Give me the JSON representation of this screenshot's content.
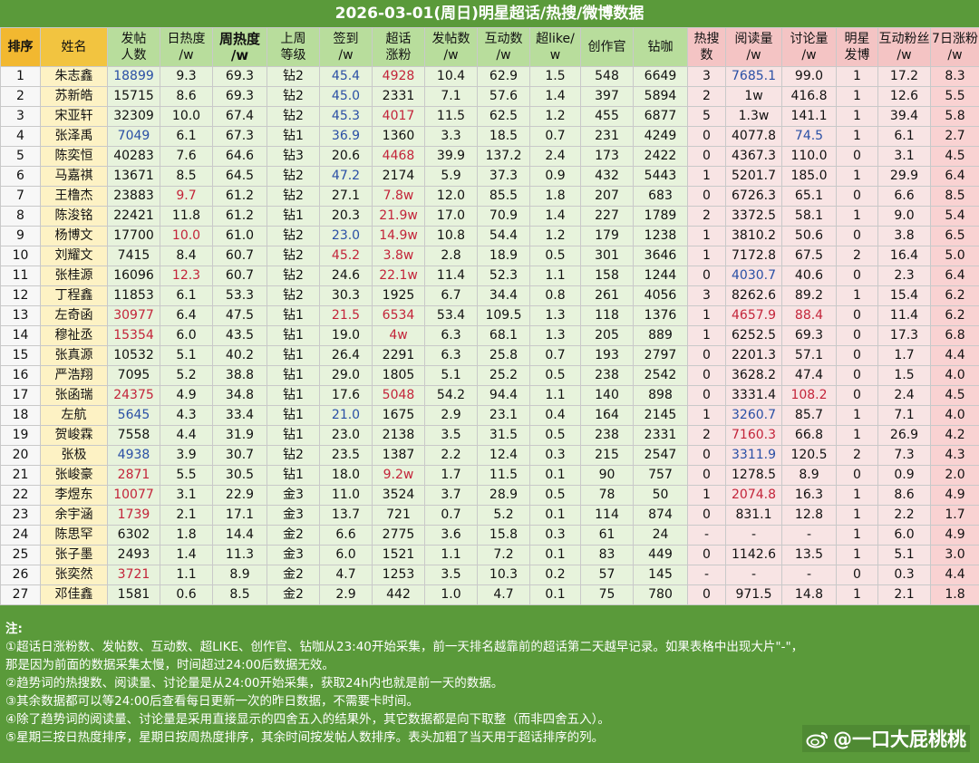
{
  "title": "2026-03-01(周日)明星超话/热搜/微博数据",
  "headers": [
    {
      "label": "排序",
      "cls": "h-rank",
      "w": 44
    },
    {
      "label": "姓名",
      "cls": "h-name",
      "w": 74
    },
    {
      "label": "发帖人数",
      "cls": "h-green",
      "w": 58,
      "br": true
    },
    {
      "label": "日热度/w",
      "cls": "h-green",
      "w": 58,
      "br": true
    },
    {
      "label": "周热度/w",
      "cls": "h-green",
      "w": 60,
      "bold": true,
      "br": true
    },
    {
      "label": "上周等级",
      "cls": "h-green",
      "w": 58,
      "br": true
    },
    {
      "label": "签到/w",
      "cls": "h-green",
      "w": 58,
      "br": true
    },
    {
      "label": "超话涨粉",
      "cls": "h-green",
      "w": 58,
      "br": true
    },
    {
      "label": "发帖数/w",
      "cls": "h-green",
      "w": 58,
      "br": true
    },
    {
      "label": "互动数/w",
      "cls": "h-green",
      "w": 58,
      "br": true
    },
    {
      "label": "超like/w",
      "cls": "h-green",
      "w": 56,
      "br": true
    },
    {
      "label": "创作官",
      "cls": "h-green",
      "w": 58
    },
    {
      "label": "钻咖",
      "cls": "h-green",
      "w": 60
    },
    {
      "label": "热搜数",
      "cls": "h-pink",
      "w": 42,
      "br": true
    },
    {
      "label": "阅读量/w",
      "cls": "h-pink",
      "w": 62,
      "br": true
    },
    {
      "label": "讨论量/w",
      "cls": "h-pink",
      "w": 60,
      "br": true
    },
    {
      "label": "明星发博",
      "cls": "h-pink",
      "w": 46,
      "br": true
    },
    {
      "label": "互动粉丝/w",
      "cls": "h-pink",
      "w": 58,
      "br": true
    },
    {
      "label": "7日涨粉/w",
      "cls": "h-pink",
      "w": 54,
      "br": true
    }
  ],
  "colors": {
    "blue": "#2a4fa5",
    "red": "#c3243a"
  },
  "rows": [
    [
      "1",
      "朱志鑫",
      "18899",
      "9.3",
      "69.3",
      "钻2",
      "45.4",
      "4928",
      "10.4",
      "62.9",
      "1.5",
      "548",
      "6649",
      "3",
      "7685.1",
      "99.0",
      "1",
      "17.2",
      "8.3"
    ],
    [
      "2",
      "苏新皓",
      "15715",
      "8.6",
      "69.3",
      "钻2",
      "45.0",
      "2331",
      "7.1",
      "57.6",
      "1.4",
      "397",
      "5894",
      "2",
      "1w",
      "416.8",
      "1",
      "12.6",
      "5.5"
    ],
    [
      "3",
      "宋亚轩",
      "32309",
      "10.0",
      "67.4",
      "钻2",
      "45.3",
      "4017",
      "11.5",
      "62.5",
      "1.2",
      "455",
      "6877",
      "5",
      "1.3w",
      "141.1",
      "1",
      "39.4",
      "5.8"
    ],
    [
      "4",
      "张泽禹",
      "7049",
      "6.1",
      "67.3",
      "钻1",
      "36.9",
      "1360",
      "3.3",
      "18.5",
      "0.7",
      "231",
      "4249",
      "0",
      "4077.8",
      "74.5",
      "1",
      "6.1",
      "2.7"
    ],
    [
      "5",
      "陈奕恒",
      "40283",
      "7.6",
      "64.6",
      "钻3",
      "20.6",
      "4468",
      "39.9",
      "137.2",
      "2.4",
      "173",
      "2422",
      "0",
      "4367.3",
      "110.0",
      "0",
      "3.1",
      "4.5"
    ],
    [
      "6",
      "马嘉祺",
      "13671",
      "8.5",
      "64.5",
      "钻2",
      "47.2",
      "2174",
      "5.9",
      "37.3",
      "0.9",
      "432",
      "5443",
      "1",
      "5201.7",
      "185.0",
      "1",
      "29.9",
      "6.4"
    ],
    [
      "7",
      "王橹杰",
      "23883",
      "9.7",
      "61.2",
      "钻2",
      "27.1",
      "7.8w",
      "12.0",
      "85.5",
      "1.8",
      "207",
      "683",
      "0",
      "6726.3",
      "65.1",
      "0",
      "6.6",
      "8.5"
    ],
    [
      "8",
      "陈浚铭",
      "22421",
      "11.8",
      "61.2",
      "钻1",
      "20.3",
      "21.9w",
      "17.0",
      "70.9",
      "1.4",
      "227",
      "1789",
      "2",
      "3372.5",
      "58.1",
      "1",
      "9.0",
      "5.4"
    ],
    [
      "9",
      "杨博文",
      "17700",
      "10.0",
      "61.0",
      "钻2",
      "23.0",
      "14.9w",
      "10.8",
      "54.4",
      "1.2",
      "179",
      "1238",
      "1",
      "3810.2",
      "50.6",
      "0",
      "3.8",
      "6.5"
    ],
    [
      "10",
      "刘耀文",
      "7415",
      "8.4",
      "60.7",
      "钻2",
      "45.2",
      "3.8w",
      "2.8",
      "18.9",
      "0.5",
      "301",
      "3646",
      "1",
      "7172.8",
      "67.5",
      "2",
      "16.4",
      "5.0"
    ],
    [
      "11",
      "张桂源",
      "16096",
      "12.3",
      "60.7",
      "钻2",
      "24.6",
      "22.1w",
      "11.4",
      "52.3",
      "1.1",
      "158",
      "1244",
      "0",
      "4030.7",
      "40.6",
      "0",
      "2.3",
      "6.4"
    ],
    [
      "12",
      "丁程鑫",
      "11853",
      "6.1",
      "53.3",
      "钻2",
      "30.3",
      "1925",
      "6.7",
      "34.4",
      "0.8",
      "261",
      "4056",
      "3",
      "8262.6",
      "89.2",
      "1",
      "15.4",
      "6.2"
    ],
    [
      "13",
      "左奇函",
      "30977",
      "6.4",
      "47.5",
      "钻1",
      "21.5",
      "6534",
      "53.4",
      "109.5",
      "1.3",
      "118",
      "1376",
      "1",
      "4657.9",
      "88.4",
      "0",
      "11.4",
      "6.2"
    ],
    [
      "14",
      "穆祉丞",
      "15354",
      "6.0",
      "43.5",
      "钻1",
      "19.0",
      "4w",
      "6.3",
      "68.1",
      "1.3",
      "205",
      "889",
      "1",
      "6252.5",
      "69.3",
      "0",
      "17.3",
      "6.8"
    ],
    [
      "15",
      "张真源",
      "10532",
      "5.1",
      "40.2",
      "钻1",
      "26.4",
      "2291",
      "6.3",
      "25.8",
      "0.7",
      "193",
      "2797",
      "0",
      "2201.3",
      "57.1",
      "0",
      "1.7",
      "4.4"
    ],
    [
      "16",
      "严浩翔",
      "7095",
      "5.2",
      "38.8",
      "钻1",
      "29.0",
      "1805",
      "5.1",
      "25.2",
      "0.5",
      "238",
      "2542",
      "0",
      "3628.2",
      "47.4",
      "0",
      "1.5",
      "4.0"
    ],
    [
      "17",
      "张函瑞",
      "24375",
      "4.9",
      "34.8",
      "钻1",
      "17.6",
      "5048",
      "54.2",
      "94.4",
      "1.1",
      "140",
      "898",
      "0",
      "3331.4",
      "108.2",
      "0",
      "2.4",
      "4.5"
    ],
    [
      "18",
      "左航",
      "5645",
      "4.3",
      "33.4",
      "钻1",
      "21.0",
      "1675",
      "2.9",
      "23.1",
      "0.4",
      "164",
      "2145",
      "1",
      "3260.7",
      "85.7",
      "1",
      "7.1",
      "4.0"
    ],
    [
      "19",
      "贺峻霖",
      "7558",
      "4.4",
      "31.9",
      "钻1",
      "23.0",
      "2138",
      "3.5",
      "31.5",
      "0.5",
      "238",
      "2331",
      "2",
      "7160.3",
      "66.8",
      "1",
      "26.9",
      "4.2"
    ],
    [
      "20",
      "张极",
      "4938",
      "3.9",
      "30.7",
      "钻2",
      "23.5",
      "1387",
      "2.2",
      "12.4",
      "0.3",
      "215",
      "2547",
      "0",
      "3311.9",
      "120.5",
      "2",
      "7.3",
      "4.3"
    ],
    [
      "21",
      "张峻豪",
      "2871",
      "5.5",
      "30.5",
      "钻1",
      "18.0",
      "9.2w",
      "1.7",
      "11.5",
      "0.1",
      "90",
      "757",
      "0",
      "1278.5",
      "8.9",
      "0",
      "0.9",
      "2.0"
    ],
    [
      "22",
      "李煜东",
      "10077",
      "3.1",
      "22.9",
      "金3",
      "11.0",
      "3524",
      "3.7",
      "28.9",
      "0.5",
      "78",
      "50",
      "1",
      "2074.8",
      "16.3",
      "1",
      "8.6",
      "4.9"
    ],
    [
      "23",
      "余宇涵",
      "1739",
      "2.1",
      "17.1",
      "金3",
      "13.7",
      "721",
      "0.7",
      "5.2",
      "0.1",
      "114",
      "874",
      "0",
      "831.1",
      "12.8",
      "1",
      "2.2",
      "1.7"
    ],
    [
      "24",
      "陈思罕",
      "6302",
      "1.8",
      "14.4",
      "金2",
      "6.6",
      "2775",
      "3.6",
      "15.8",
      "0.3",
      "61",
      "24",
      "-",
      "-",
      "-",
      "1",
      "6.0",
      "4.9"
    ],
    [
      "25",
      "张子墨",
      "2493",
      "1.4",
      "11.3",
      "金3",
      "6.0",
      "1521",
      "1.1",
      "7.2",
      "0.1",
      "83",
      "449",
      "0",
      "1142.6",
      "13.5",
      "1",
      "5.1",
      "3.0"
    ],
    [
      "26",
      "张奕然",
      "3721",
      "1.1",
      "8.9",
      "金2",
      "4.7",
      "1253",
      "3.5",
      "10.3",
      "0.2",
      "57",
      "145",
      "-",
      "-",
      "-",
      "0",
      "0.3",
      "4.4"
    ],
    [
      "27",
      "邓佳鑫",
      "1581",
      "0.6",
      "8.5",
      "金2",
      "2.9",
      "442",
      "1.0",
      "4.7",
      "0.1",
      "75",
      "780",
      "0",
      "971.5",
      "14.8",
      "1",
      "2.1",
      "1.8"
    ]
  ],
  "highlights": {
    "blue": [
      [
        0,
        2
      ],
      [
        0,
        6
      ],
      [
        0,
        14
      ],
      [
        1,
        6
      ],
      [
        2,
        6
      ],
      [
        3,
        2
      ],
      [
        3,
        6
      ],
      [
        3,
        15
      ],
      [
        5,
        6
      ],
      [
        8,
        6
      ],
      [
        10,
        14
      ],
      [
        17,
        2
      ],
      [
        17,
        6
      ],
      [
        17,
        14
      ],
      [
        19,
        2
      ],
      [
        19,
        14
      ]
    ],
    "red": [
      [
        0,
        7
      ],
      [
        2,
        7
      ],
      [
        4,
        7
      ],
      [
        6,
        3
      ],
      [
        6,
        7
      ],
      [
        7,
        7
      ],
      [
        8,
        3
      ],
      [
        8,
        7
      ],
      [
        9,
        6
      ],
      [
        9,
        7
      ],
      [
        10,
        3
      ],
      [
        10,
        7
      ],
      [
        12,
        2
      ],
      [
        12,
        6
      ],
      [
        12,
        7
      ],
      [
        12,
        14
      ],
      [
        12,
        15
      ],
      [
        13,
        2
      ],
      [
        13,
        7
      ],
      [
        16,
        2
      ],
      [
        16,
        7
      ],
      [
        16,
        15
      ],
      [
        18,
        14
      ],
      [
        20,
        2
      ],
      [
        20,
        7
      ],
      [
        21,
        2
      ],
      [
        21,
        14
      ],
      [
        22,
        2
      ],
      [
        25,
        2
      ]
    ]
  },
  "notes": {
    "title": "注:",
    "lines": [
      "①超话日涨粉数、发帖数、互动数、超LIKE、创作官、钻咖从23:40开始采集，前一天排名越靠前的超话第二天越早记录。如果表格中出现大片\"-\"，",
      "那是因为前面的数据采集太慢，时间超过24:00后数据无效。",
      "②趋势词的热搜数、阅读量、讨论量是从24:00开始采集，获取24h内也就是前一天的数据。",
      "③其余数据都可以等24:00后查看每日更新一次的昨日数据，不需要卡时间。",
      "④除了趋势词的阅读量、讨论量是采用直接显示的四舍五入的结果外，其它数据都是向下取整（而非四舍五入）。",
      "⑤星期三按日热度排序，星期日按周热度排序，其余时间按发帖人数排序。表头加粗了当天用于超话排序的列。"
    ]
  },
  "watermark": "@一口大屁桃桃"
}
